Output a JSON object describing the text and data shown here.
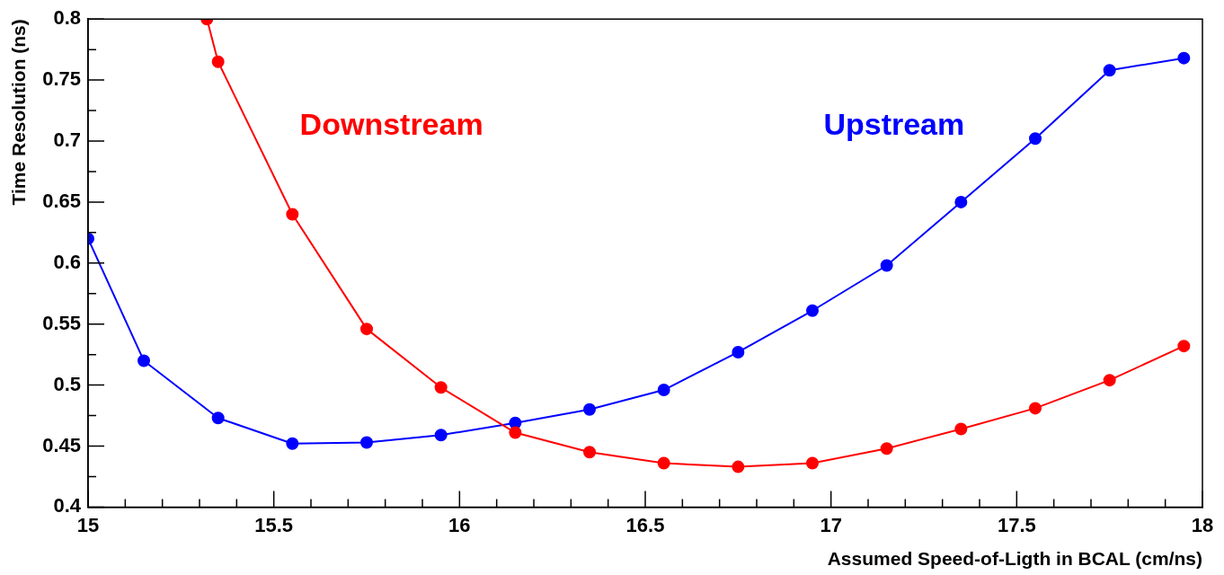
{
  "chart_data": {
    "type": "line",
    "xlabel": "Assumed Speed-of-Ligth in BCAL (cm/ns)",
    "ylabel": "Time Resolution (ns)",
    "xlim": [
      15,
      18
    ],
    "xticks": [
      15,
      15.5,
      16,
      16.5,
      17,
      17.5,
      18
    ],
    "ylim": [
      0.4,
      0.8
    ],
    "yticks": [
      0.4,
      0.45,
      0.5,
      0.55,
      0.6,
      0.65,
      0.7,
      0.75,
      0.8
    ],
    "grid": false,
    "legend": false,
    "marker": "circle",
    "line_style": "solid",
    "series": [
      {
        "name": "Downstream",
        "color": "#ff0000",
        "x": [
          15.32,
          15.35,
          15.55,
          15.75,
          15.95,
          16.15,
          16.35,
          16.55,
          16.75,
          16.95,
          17.15,
          17.35,
          17.55,
          17.75,
          17.95
        ],
        "values": [
          0.8,
          0.765,
          0.64,
          0.546,
          0.498,
          0.461,
          0.445,
          0.436,
          0.433,
          0.436,
          0.448,
          0.464,
          0.481,
          0.504,
          0.532
        ]
      },
      {
        "name": "Upstream",
        "color": "#0000ff",
        "x": [
          15,
          15.15,
          15.35,
          15.55,
          15.75,
          15.95,
          16.15,
          16.35,
          16.55,
          16.75,
          16.95,
          17.15,
          17.35,
          17.55,
          17.75,
          17.95
        ],
        "values": [
          0.62,
          0.52,
          0.473,
          0.452,
          0.453,
          0.459,
          0.469,
          0.48,
          0.496,
          0.527,
          0.561,
          0.598,
          0.65,
          0.702,
          0.758,
          0.768
        ]
      }
    ]
  }
}
